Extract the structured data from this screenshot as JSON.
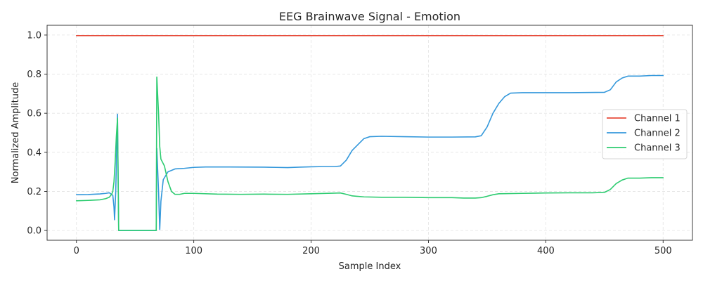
{
  "chart_data": {
    "type": "line",
    "title": "EEG Brainwave Signal - Emotion",
    "xlabel": "Sample Index",
    "ylabel": "Normalized Amplitude",
    "xlim": [
      -25,
      525
    ],
    "ylim": [
      -0.05,
      1.05
    ],
    "xticks": [
      0,
      100,
      200,
      300,
      400,
      500
    ],
    "yticks": [
      0.0,
      0.2,
      0.4,
      0.6,
      0.8,
      1.0
    ],
    "xtick_labels": [
      "0",
      "100",
      "200",
      "300",
      "400",
      "500"
    ],
    "ytick_labels": [
      "0.0",
      "0.2",
      "0.4",
      "0.6",
      "0.8",
      "1.0"
    ],
    "grid": true,
    "legend_position": "center-right",
    "series": [
      {
        "name": "Channel 1",
        "color": "#e74c3c",
        "points": [
          [
            0,
            0.997
          ],
          [
            500,
            0.997
          ]
        ]
      },
      {
        "name": "Channel 2",
        "color": "#3498db",
        "points": [
          [
            0,
            0.183
          ],
          [
            10,
            0.184
          ],
          [
            20,
            0.187
          ],
          [
            25,
            0.19
          ],
          [
            28,
            0.193
          ],
          [
            31,
            0.18
          ],
          [
            32,
            0.12
          ],
          [
            32.5,
            0.055
          ],
          [
            33.5,
            0.2
          ],
          [
            35,
            0.595
          ],
          [
            36,
            0.0
          ],
          [
            67,
            0.0
          ],
          [
            68,
            0.0
          ],
          [
            68.5,
            0.42
          ],
          [
            70,
            0.2
          ],
          [
            71,
            0.005
          ],
          [
            72,
            0.15
          ],
          [
            74,
            0.26
          ],
          [
            78,
            0.3
          ],
          [
            84,
            0.315
          ],
          [
            92,
            0.318
          ],
          [
            100,
            0.323
          ],
          [
            110,
            0.325
          ],
          [
            130,
            0.325
          ],
          [
            160,
            0.324
          ],
          [
            170,
            0.323
          ],
          [
            180,
            0.322
          ],
          [
            190,
            0.324
          ],
          [
            200,
            0.326
          ],
          [
            210,
            0.327
          ],
          [
            220,
            0.327
          ],
          [
            225,
            0.33
          ],
          [
            230,
            0.36
          ],
          [
            235,
            0.41
          ],
          [
            240,
            0.44
          ],
          [
            245,
            0.47
          ],
          [
            250,
            0.48
          ],
          [
            260,
            0.482
          ],
          [
            280,
            0.48
          ],
          [
            300,
            0.478
          ],
          [
            320,
            0.478
          ],
          [
            340,
            0.479
          ],
          [
            345,
            0.485
          ],
          [
            350,
            0.53
          ],
          [
            355,
            0.6
          ],
          [
            360,
            0.65
          ],
          [
            365,
            0.685
          ],
          [
            370,
            0.703
          ],
          [
            380,
            0.705
          ],
          [
            400,
            0.705
          ],
          [
            420,
            0.705
          ],
          [
            450,
            0.707
          ],
          [
            455,
            0.72
          ],
          [
            460,
            0.76
          ],
          [
            465,
            0.78
          ],
          [
            470,
            0.79
          ],
          [
            480,
            0.79
          ],
          [
            490,
            0.793
          ],
          [
            500,
            0.793
          ]
        ]
      },
      {
        "name": "Channel 3",
        "color": "#2ecc71",
        "points": [
          [
            0,
            0.152
          ],
          [
            10,
            0.154
          ],
          [
            20,
            0.157
          ],
          [
            25,
            0.163
          ],
          [
            28,
            0.17
          ],
          [
            30,
            0.185
          ],
          [
            31,
            0.2
          ],
          [
            32,
            0.25
          ],
          [
            33,
            0.35
          ],
          [
            34,
            0.48
          ],
          [
            35,
            0.575
          ],
          [
            36,
            0.0
          ],
          [
            67,
            0.0
          ],
          [
            68,
            0.0
          ],
          [
            68.5,
            0.785
          ],
          [
            70,
            0.6
          ],
          [
            71,
            0.43
          ],
          [
            72,
            0.365
          ],
          [
            75,
            0.33
          ],
          [
            78,
            0.25
          ],
          [
            81,
            0.2
          ],
          [
            84,
            0.185
          ],
          [
            88,
            0.185
          ],
          [
            92,
            0.19
          ],
          [
            100,
            0.19
          ],
          [
            120,
            0.186
          ],
          [
            140,
            0.185
          ],
          [
            160,
            0.186
          ],
          [
            180,
            0.185
          ],
          [
            200,
            0.188
          ],
          [
            220,
            0.191
          ],
          [
            225,
            0.192
          ],
          [
            230,
            0.185
          ],
          [
            235,
            0.177
          ],
          [
            245,
            0.172
          ],
          [
            260,
            0.17
          ],
          [
            280,
            0.17
          ],
          [
            300,
            0.168
          ],
          [
            320,
            0.168
          ],
          [
            330,
            0.166
          ],
          [
            340,
            0.166
          ],
          [
            345,
            0.168
          ],
          [
            350,
            0.175
          ],
          [
            355,
            0.183
          ],
          [
            360,
            0.188
          ],
          [
            380,
            0.19
          ],
          [
            400,
            0.192
          ],
          [
            420,
            0.193
          ],
          [
            440,
            0.193
          ],
          [
            450,
            0.195
          ],
          [
            455,
            0.21
          ],
          [
            460,
            0.24
          ],
          [
            465,
            0.258
          ],
          [
            470,
            0.268
          ],
          [
            480,
            0.268
          ],
          [
            490,
            0.27
          ],
          [
            500,
            0.27
          ]
        ]
      }
    ]
  }
}
